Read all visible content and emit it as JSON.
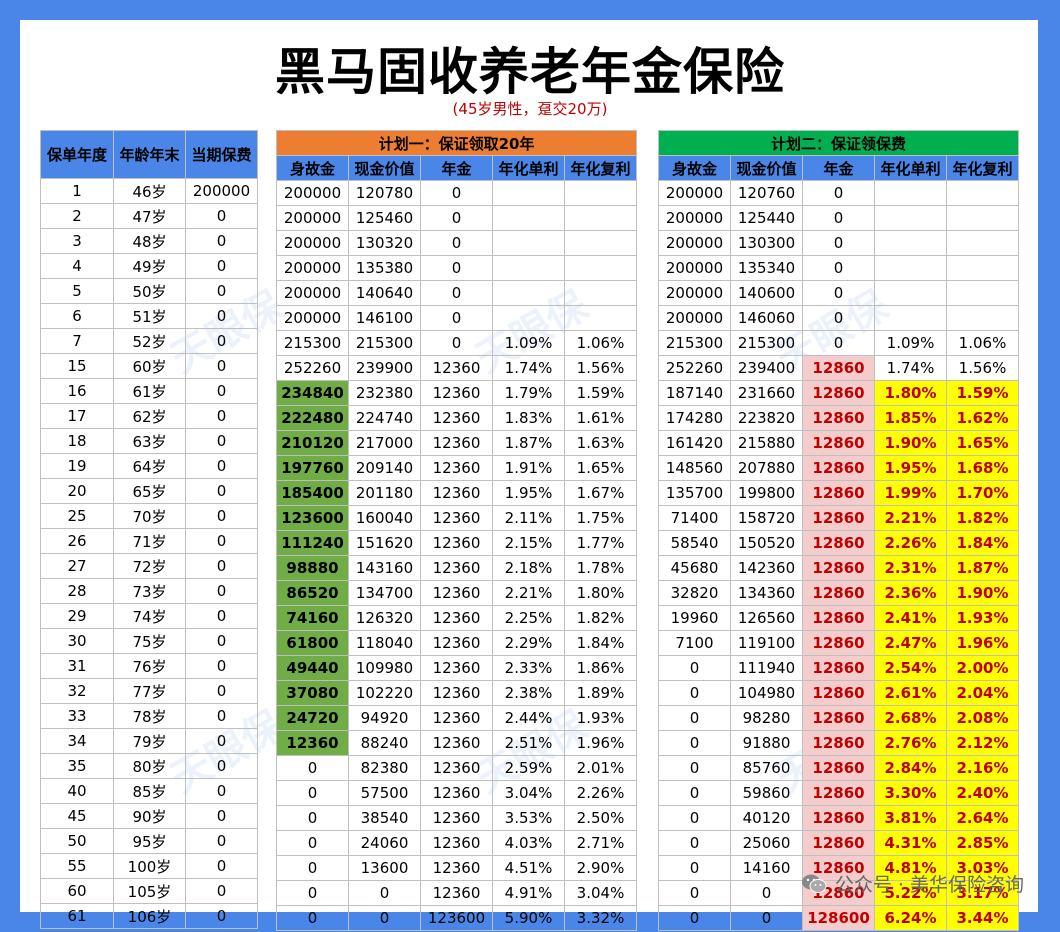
{
  "title": "黑马固收养老年金保险",
  "subtitle": "(45岁男性，趸交20万)",
  "left_table": {
    "headers": [
      "保单年度",
      "年龄年末",
      "当期保费"
    ],
    "rows": [
      [
        "1",
        "46岁",
        "200000"
      ],
      [
        "2",
        "47岁",
        "0"
      ],
      [
        "3",
        "48岁",
        "0"
      ],
      [
        "4",
        "49岁",
        "0"
      ],
      [
        "5",
        "50岁",
        "0"
      ],
      [
        "6",
        "51岁",
        "0"
      ],
      [
        "7",
        "52岁",
        "0"
      ],
      [
        "15",
        "60岁",
        "0"
      ],
      [
        "16",
        "61岁",
        "0"
      ],
      [
        "17",
        "62岁",
        "0"
      ],
      [
        "18",
        "63岁",
        "0"
      ],
      [
        "19",
        "64岁",
        "0"
      ],
      [
        "20",
        "65岁",
        "0"
      ],
      [
        "25",
        "70岁",
        "0"
      ],
      [
        "26",
        "71岁",
        "0"
      ],
      [
        "27",
        "72岁",
        "0"
      ],
      [
        "28",
        "73岁",
        "0"
      ],
      [
        "29",
        "74岁",
        "0"
      ],
      [
        "30",
        "75岁",
        "0"
      ],
      [
        "31",
        "76岁",
        "0"
      ],
      [
        "32",
        "77岁",
        "0"
      ],
      [
        "33",
        "78岁",
        "0"
      ],
      [
        "34",
        "79岁",
        "0"
      ],
      [
        "35",
        "80岁",
        "0"
      ],
      [
        "40",
        "85岁",
        "0"
      ],
      [
        "45",
        "90岁",
        "0"
      ],
      [
        "50",
        "95岁",
        "0"
      ],
      [
        "55",
        "100岁",
        "0"
      ],
      [
        "60",
        "105岁",
        "0"
      ],
      [
        "61",
        "106岁",
        "0"
      ]
    ]
  },
  "plan1": {
    "title": "计划一：保证领取20年",
    "headers": [
      "身故金",
      "现金价值",
      "年金",
      "年化单利",
      "年化复利"
    ],
    "rows": [
      [
        "200000",
        "120780",
        "0",
        "",
        ""
      ],
      [
        "200000",
        "125460",
        "0",
        "",
        ""
      ],
      [
        "200000",
        "130320",
        "0",
        "",
        ""
      ],
      [
        "200000",
        "135380",
        "0",
        "",
        ""
      ],
      [
        "200000",
        "140640",
        "0",
        "",
        ""
      ],
      [
        "200000",
        "146100",
        "0",
        "",
        ""
      ],
      [
        "215300",
        "215300",
        "0",
        "1.09%",
        "1.06%"
      ],
      [
        "252260",
        "239900",
        "12360",
        "1.74%",
        "1.56%"
      ],
      [
        "234840",
        "232380",
        "12360",
        "1.79%",
        "1.59%"
      ],
      [
        "222480",
        "224740",
        "12360",
        "1.83%",
        "1.61%"
      ],
      [
        "210120",
        "217000",
        "12360",
        "1.87%",
        "1.63%"
      ],
      [
        "197760",
        "209140",
        "12360",
        "1.91%",
        "1.65%"
      ],
      [
        "185400",
        "201180",
        "12360",
        "1.95%",
        "1.67%"
      ],
      [
        "123600",
        "160040",
        "12360",
        "2.11%",
        "1.75%"
      ],
      [
        "111240",
        "151620",
        "12360",
        "2.15%",
        "1.77%"
      ],
      [
        "98880",
        "143160",
        "12360",
        "2.18%",
        "1.78%"
      ],
      [
        "86520",
        "134700",
        "12360",
        "2.21%",
        "1.80%"
      ],
      [
        "74160",
        "126320",
        "12360",
        "2.25%",
        "1.82%"
      ],
      [
        "61800",
        "118040",
        "12360",
        "2.29%",
        "1.84%"
      ],
      [
        "49440",
        "109980",
        "12360",
        "2.33%",
        "1.86%"
      ],
      [
        "37080",
        "102220",
        "12360",
        "2.38%",
        "1.89%"
      ],
      [
        "24720",
        "94920",
        "12360",
        "2.44%",
        "1.93%"
      ],
      [
        "12360",
        "88240",
        "12360",
        "2.51%",
        "1.96%"
      ],
      [
        "0",
        "82380",
        "12360",
        "2.59%",
        "2.01%"
      ],
      [
        "0",
        "57500",
        "12360",
        "3.04%",
        "2.26%"
      ],
      [
        "0",
        "38540",
        "12360",
        "3.53%",
        "2.50%"
      ],
      [
        "0",
        "24060",
        "12360",
        "4.03%",
        "2.71%"
      ],
      [
        "0",
        "13600",
        "12360",
        "4.51%",
        "2.90%"
      ],
      [
        "0",
        "0",
        "12360",
        "4.91%",
        "3.04%"
      ],
      [
        "0",
        "0",
        "123600",
        "5.90%",
        "3.32%"
      ]
    ],
    "highlight_rows_start": 8,
    "highlight_rows_end": 22,
    "highlight_color": "#70ad47"
  },
  "plan2": {
    "title": "计划二：保证领保费",
    "headers": [
      "身故金",
      "现金价值",
      "年金",
      "年化单利",
      "年化复利"
    ],
    "rows": [
      [
        "200000",
        "120760",
        "0",
        "",
        ""
      ],
      [
        "200000",
        "125440",
        "0",
        "",
        ""
      ],
      [
        "200000",
        "130300",
        "0",
        "",
        ""
      ],
      [
        "200000",
        "135340",
        "0",
        "",
        ""
      ],
      [
        "200000",
        "140600",
        "0",
        "",
        ""
      ],
      [
        "200000",
        "146060",
        "0",
        "",
        ""
      ],
      [
        "215300",
        "215300",
        "0",
        "1.09%",
        "1.06%"
      ],
      [
        "252260",
        "239400",
        "12860",
        "1.74%",
        "1.56%"
      ],
      [
        "187140",
        "231660",
        "12860",
        "1.80%",
        "1.59%"
      ],
      [
        "174280",
        "223820",
        "12860",
        "1.85%",
        "1.62%"
      ],
      [
        "161420",
        "215880",
        "12860",
        "1.90%",
        "1.65%"
      ],
      [
        "148560",
        "207880",
        "12860",
        "1.95%",
        "1.68%"
      ],
      [
        "135700",
        "199800",
        "12860",
        "1.99%",
        "1.70%"
      ],
      [
        "71400",
        "158720",
        "12860",
        "2.21%",
        "1.82%"
      ],
      [
        "58540",
        "150520",
        "12860",
        "2.26%",
        "1.84%"
      ],
      [
        "45680",
        "142360",
        "12860",
        "2.31%",
        "1.87%"
      ],
      [
        "32820",
        "134360",
        "12860",
        "2.36%",
        "1.90%"
      ],
      [
        "19960",
        "126560",
        "12860",
        "2.41%",
        "1.93%"
      ],
      [
        "7100",
        "119100",
        "12860",
        "2.47%",
        "1.96%"
      ],
      [
        "0",
        "111940",
        "12860",
        "2.54%",
        "2.00%"
      ],
      [
        "0",
        "104980",
        "12860",
        "2.61%",
        "2.04%"
      ],
      [
        "0",
        "98280",
        "12860",
        "2.68%",
        "2.08%"
      ],
      [
        "0",
        "91880",
        "12860",
        "2.76%",
        "2.12%"
      ],
      [
        "0",
        "85760",
        "12860",
        "2.84%",
        "2.16%"
      ],
      [
        "0",
        "59860",
        "12860",
        "3.30%",
        "2.40%"
      ],
      [
        "0",
        "40120",
        "12860",
        "3.81%",
        "2.64%"
      ],
      [
        "0",
        "25060",
        "12860",
        "4.31%",
        "2.85%"
      ],
      [
        "0",
        "14160",
        "12860",
        "4.81%",
        "3.03%"
      ],
      [
        "0",
        "0",
        "12860",
        "5.22%",
        "3.17%"
      ],
      [
        "0",
        "0",
        "128600",
        "6.24%",
        "3.44%"
      ]
    ],
    "annuity_highlight_start": 7,
    "yield_highlight_start": 8,
    "annuity_color": "#f4cccc",
    "yield_color": "#ffff00"
  },
  "watermark": "天眼保",
  "footer": {
    "text": "公众号 · 美华保险咨询",
    "icon": "wechat-icon"
  },
  "colors": {
    "frame": "#4a86e8",
    "header_blue": "#4a86e8",
    "plan1_header": "#ed7d31",
    "plan2_header": "#00b050",
    "accent_red": "#c00000"
  }
}
